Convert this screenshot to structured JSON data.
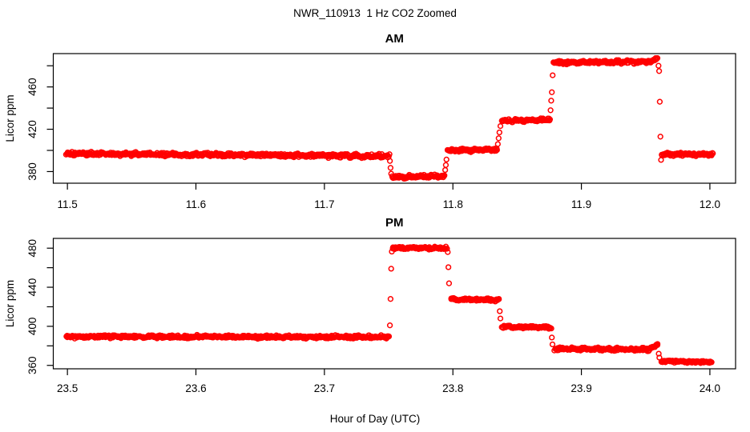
{
  "figure": {
    "title": "NWR_110913  1 Hz CO2 Zoomed",
    "xlabel": "Hour of Day (UTC)",
    "background_color": "#ffffff",
    "axis_color": "#000000",
    "point_color": "#ff0000"
  },
  "chart_data": [
    {
      "type": "scatter",
      "title": "AM",
      "ylabel": "Licor ppm",
      "xlim": [
        11.489,
        12.02
      ],
      "ylim": [
        369,
        491.5
      ],
      "xticks": [
        11.5,
        11.6,
        11.7,
        11.8,
        11.9,
        12.0
      ],
      "yticks_labeled": [
        380,
        420,
        460
      ],
      "yticks_unlabeled": [
        400,
        440,
        480
      ],
      "legend": "none",
      "grid": false,
      "marker": {
        "shape": "open-circle",
        "color": "#ff0000",
        "radius_px": 2.9
      },
      "segments": [
        {
          "x0": 11.499,
          "x1": 11.7505,
          "v0": 397.0,
          "v1": 394.5,
          "noise": 1.3
        },
        {
          "x0": 11.7525,
          "x1": 11.7935,
          "v0": 374.8,
          "v1": 375.8,
          "noise": 1.0
        },
        {
          "x0": 11.796,
          "x1": 11.8345,
          "v0": 400.0,
          "v1": 400.6,
          "noise": 1.1
        },
        {
          "x0": 11.838,
          "x1": 11.8755,
          "v0": 428.0,
          "v1": 429.0,
          "noise": 1.0
        },
        {
          "x0": 11.8785,
          "x1": 11.954,
          "v0": 483.0,
          "v1": 483.8,
          "noise": 1.2
        },
        {
          "x0": 11.954,
          "x1": 11.9595,
          "v0": 484.0,
          "v1": 487.5,
          "noise": 0.7
        },
        {
          "x0": 11.9625,
          "x1": 12.0025,
          "v0": 396.2,
          "v1": 396.2,
          "noise": 1.2
        }
      ],
      "transition_points": [
        [
          11.751,
          390.0
        ],
        [
          11.7515,
          383.5
        ],
        [
          11.752,
          378.0
        ],
        [
          11.794,
          381.5
        ],
        [
          11.7945,
          386.2
        ],
        [
          11.795,
          391.4
        ],
        [
          11.835,
          406.0
        ],
        [
          11.8356,
          411.5
        ],
        [
          11.8362,
          417.0
        ],
        [
          11.837,
          423.0
        ],
        [
          11.876,
          438.0
        ],
        [
          11.8765,
          447.0
        ],
        [
          11.877,
          455.0
        ],
        [
          11.8776,
          471.0
        ],
        [
          11.96,
          480.0
        ],
        [
          11.9605,
          475.0
        ],
        [
          11.961,
          446.0
        ],
        [
          11.9615,
          413.0
        ],
        [
          11.962,
          391.0
        ]
      ]
    },
    {
      "type": "scatter",
      "title": "PM",
      "ylabel": "Licor ppm",
      "xlim": [
        23.489,
        24.02
      ],
      "ylim": [
        356.5,
        490
      ],
      "xticks": [
        23.5,
        23.6,
        23.7,
        23.8,
        23.9,
        24.0
      ],
      "yticks_labeled": [
        360,
        400,
        440,
        480
      ],
      "yticks_unlabeled": [
        380,
        420,
        460
      ],
      "legend": "none",
      "grid": false,
      "marker": {
        "shape": "open-circle",
        "color": "#ff0000",
        "radius_px": 2.9
      },
      "segments": [
        {
          "x0": 23.499,
          "x1": 23.7505,
          "v0": 389.5,
          "v1": 389.0,
          "noise": 1.2
        },
        {
          "x0": 23.753,
          "x1": 23.7955,
          "v0": 480.3,
          "v1": 480.0,
          "noise": 1.1
        },
        {
          "x0": 23.7985,
          "x1": 23.836,
          "v0": 427.5,
          "v1": 427.0,
          "noise": 1.0
        },
        {
          "x0": 23.838,
          "x1": 23.8765,
          "v0": 399.5,
          "v1": 399.0,
          "noise": 1.0
        },
        {
          "x0": 23.879,
          "x1": 23.953,
          "v0": 377.0,
          "v1": 376.3,
          "noise": 1.1
        },
        {
          "x0": 23.953,
          "x1": 23.9595,
          "v0": 377.0,
          "v1": 381.5,
          "noise": 0.8
        },
        {
          "x0": 23.962,
          "x1": 24.0015,
          "v0": 364.2,
          "v1": 363.6,
          "noise": 1.0
        }
      ],
      "transition_points": [
        [
          23.751,
          401.0
        ],
        [
          23.7515,
          428.0
        ],
        [
          23.752,
          459.0
        ],
        [
          23.7525,
          476.5
        ],
        [
          23.796,
          476.0
        ],
        [
          23.7965,
          460.5
        ],
        [
          23.797,
          444.0
        ],
        [
          23.8365,
          415.5
        ],
        [
          23.837,
          408.0
        ],
        [
          23.877,
          388.5
        ],
        [
          23.8775,
          381.5
        ],
        [
          23.9602,
          372.0
        ],
        [
          23.9607,
          368.0
        ]
      ]
    }
  ]
}
